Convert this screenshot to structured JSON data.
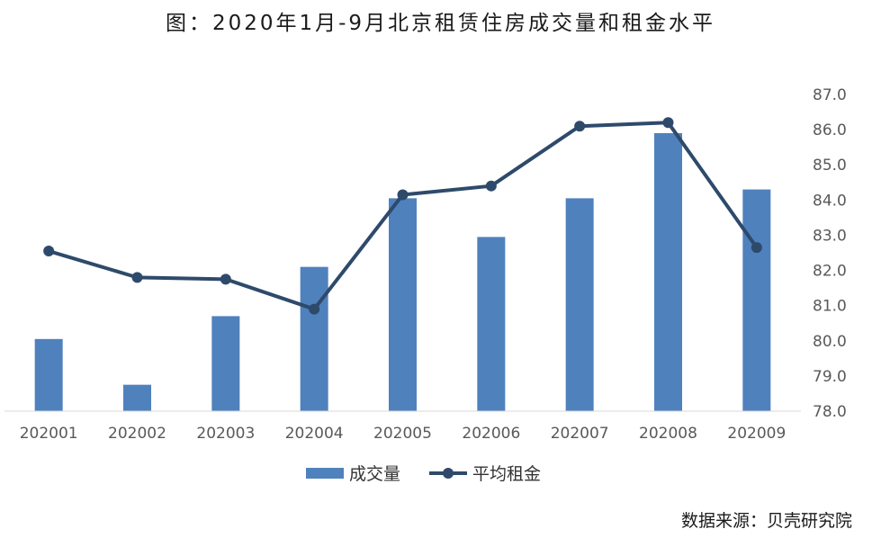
{
  "chart_data": {
    "type": "bar+line",
    "title": "图：2020年1月-9月北京租赁住房成交量和租金水平",
    "categories": [
      "202001",
      "202002",
      "202003",
      "202004",
      "202005",
      "202006",
      "202007",
      "202008",
      "202009"
    ],
    "series": [
      {
        "name": "成交量",
        "type": "bar",
        "axis": "hidden-left",
        "color": "#4F81BD",
        "values": [
          80.05,
          78.75,
          80.7,
          82.1,
          84.05,
          82.95,
          84.05,
          85.9,
          84.3
        ]
      },
      {
        "name": "平均租金",
        "type": "line",
        "axis": "right",
        "color": "#2E4A6B",
        "values": [
          82.55,
          81.8,
          81.75,
          80.9,
          84.15,
          84.4,
          86.1,
          86.2,
          82.65
        ]
      }
    ],
    "y_right": {
      "ylim": [
        78.0,
        87.0
      ],
      "ticks": [
        "78.0",
        "79.0",
        "80.0",
        "81.0",
        "82.0",
        "83.0",
        "84.0",
        "85.0",
        "86.0",
        "87.0"
      ]
    },
    "grid": false,
    "legend_position": "bottom-center"
  },
  "source": "数据来源：贝壳研究院"
}
